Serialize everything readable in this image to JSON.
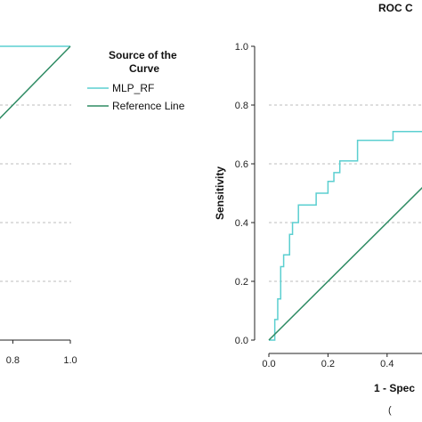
{
  "chart_data": [
    {
      "type": "line",
      "title": "",
      "xlabel": "",
      "ylabel": "",
      "xlim": [
        0.0,
        1.0
      ],
      "ylim": [
        0.0,
        1.0
      ],
      "x_ticks": [
        "0.8",
        "1.0"
      ],
      "grid": "horizontal-dashed",
      "series": [
        {
          "name": "MLP_RF",
          "color": "#5bcfd0",
          "x": [
            0.0,
            0.1,
            0.1,
            0.8,
            1.0
          ],
          "y": [
            0.97,
            0.97,
            1.0,
            1.0,
            1.0
          ]
        },
        {
          "name": "Reference Line",
          "color": "#2e8b63",
          "x": [
            0.0,
            1.0
          ],
          "y": [
            0.0,
            1.0
          ]
        }
      ]
    },
    {
      "type": "line",
      "title": "ROC C",
      "xlabel": "1 - Spec",
      "ylabel": "Sensitivity",
      "xlim": [
        0.0,
        1.0
      ],
      "ylim": [
        0.0,
        1.0
      ],
      "x_ticks": [
        "0.0",
        "0.2",
        "0.4"
      ],
      "y_ticks": [
        "0.0",
        "0.2",
        "0.4",
        "0.6",
        "0.8",
        "1.0"
      ],
      "grid": "horizontal-dashed",
      "series": [
        {
          "name": "MLP_RF",
          "color": "#5bcfd0",
          "x": [
            0.0,
            0.02,
            0.02,
            0.03,
            0.03,
            0.04,
            0.04,
            0.05,
            0.05,
            0.07,
            0.07,
            0.08,
            0.08,
            0.1,
            0.1,
            0.16,
            0.16,
            0.2,
            0.2,
            0.22,
            0.22,
            0.24,
            0.24,
            0.26,
            0.26,
            0.3,
            0.3,
            0.42,
            0.42,
            0.5,
            0.5,
            0.55
          ],
          "y": [
            0.0,
            0.0,
            0.07,
            0.07,
            0.14,
            0.14,
            0.25,
            0.25,
            0.29,
            0.29,
            0.36,
            0.36,
            0.4,
            0.4,
            0.46,
            0.46,
            0.5,
            0.5,
            0.54,
            0.54,
            0.57,
            0.57,
            0.61,
            0.61,
            0.61,
            0.61,
            0.68,
            0.68,
            0.71,
            0.71,
            0.71,
            0.71
          ]
        },
        {
          "name": "Reference Line",
          "color": "#2e8b63",
          "x": [
            0.0,
            1.0
          ],
          "y": [
            0.0,
            1.0
          ]
        }
      ]
    }
  ],
  "legend": {
    "title": "Source of the Curve",
    "items": [
      {
        "label": "MLP_RF",
        "color": "#5bcfd0"
      },
      {
        "label": "Reference Line",
        "color": "#2e8b63"
      }
    ]
  },
  "caption_fragment": "("
}
